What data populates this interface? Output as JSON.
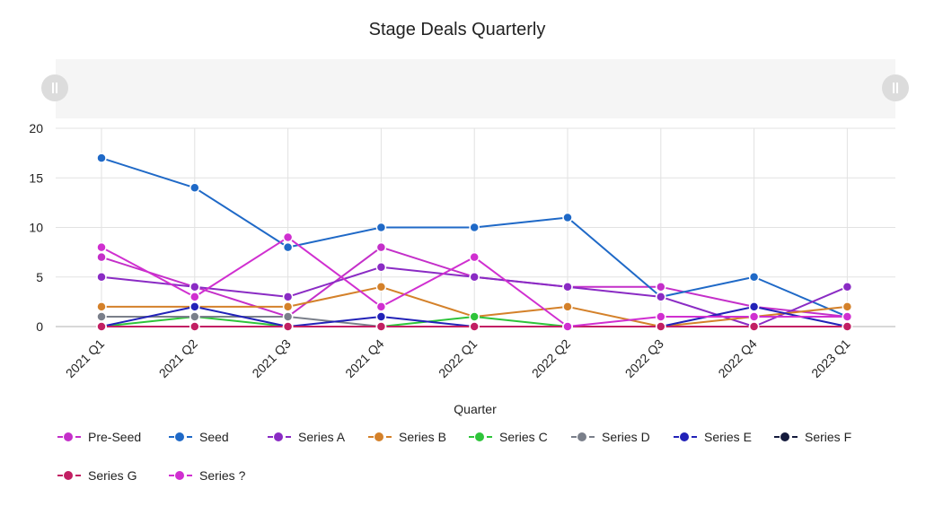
{
  "chart_data": {
    "type": "line",
    "title": "Stage Deals Quarterly",
    "xlabel": "Quarter",
    "ylabel": "",
    "ylim": [
      0,
      20
    ],
    "yticks": [
      0,
      5,
      10,
      15,
      20
    ],
    "grid": true,
    "legend_position": "bottom",
    "categories": [
      "2021 Q1",
      "2021 Q2",
      "2021 Q3",
      "2021 Q4",
      "2022 Q1",
      "2022 Q2",
      "2022 Q3",
      "2022 Q4",
      "2023 Q1"
    ],
    "series": [
      {
        "name": "Pre-Seed",
        "color": "#c42fc9",
        "values": [
          7,
          4,
          1,
          8,
          5,
          4,
          4,
          2,
          1
        ]
      },
      {
        "name": "Seed",
        "color": "#1f69c7",
        "values": [
          17,
          14,
          8,
          10,
          10,
          11,
          3,
          5,
          1
        ]
      },
      {
        "name": "Series A",
        "color": "#8a2bc4",
        "values": [
          5,
          4,
          3,
          6,
          5,
          4,
          3,
          0,
          4
        ]
      },
      {
        "name": "Series B",
        "color": "#d4812a",
        "values": [
          2,
          2,
          2,
          4,
          1,
          2,
          0,
          1,
          2
        ]
      },
      {
        "name": "Series C",
        "color": "#2ec43a",
        "values": [
          0,
          1,
          0,
          0,
          1,
          0,
          0,
          0,
          0
        ]
      },
      {
        "name": "Series D",
        "color": "#7a7f8a",
        "values": [
          1,
          1,
          1,
          0,
          0,
          0,
          0,
          0,
          0
        ]
      },
      {
        "name": "Series E",
        "color": "#2222b8",
        "values": [
          0,
          2,
          0,
          1,
          0,
          0,
          0,
          2,
          0
        ]
      },
      {
        "name": "Series F",
        "color": "#141a3c",
        "values": [
          0,
          0,
          0,
          0,
          0,
          0,
          0,
          0,
          0
        ]
      },
      {
        "name": "Series G",
        "color": "#c21f63",
        "values": [
          0,
          0,
          0,
          0,
          0,
          0,
          0,
          0,
          0
        ]
      },
      {
        "name": "Series ?",
        "color": "#d02fd0",
        "values": [
          8,
          3,
          9,
          2,
          7,
          0,
          1,
          1,
          1
        ]
      }
    ]
  }
}
